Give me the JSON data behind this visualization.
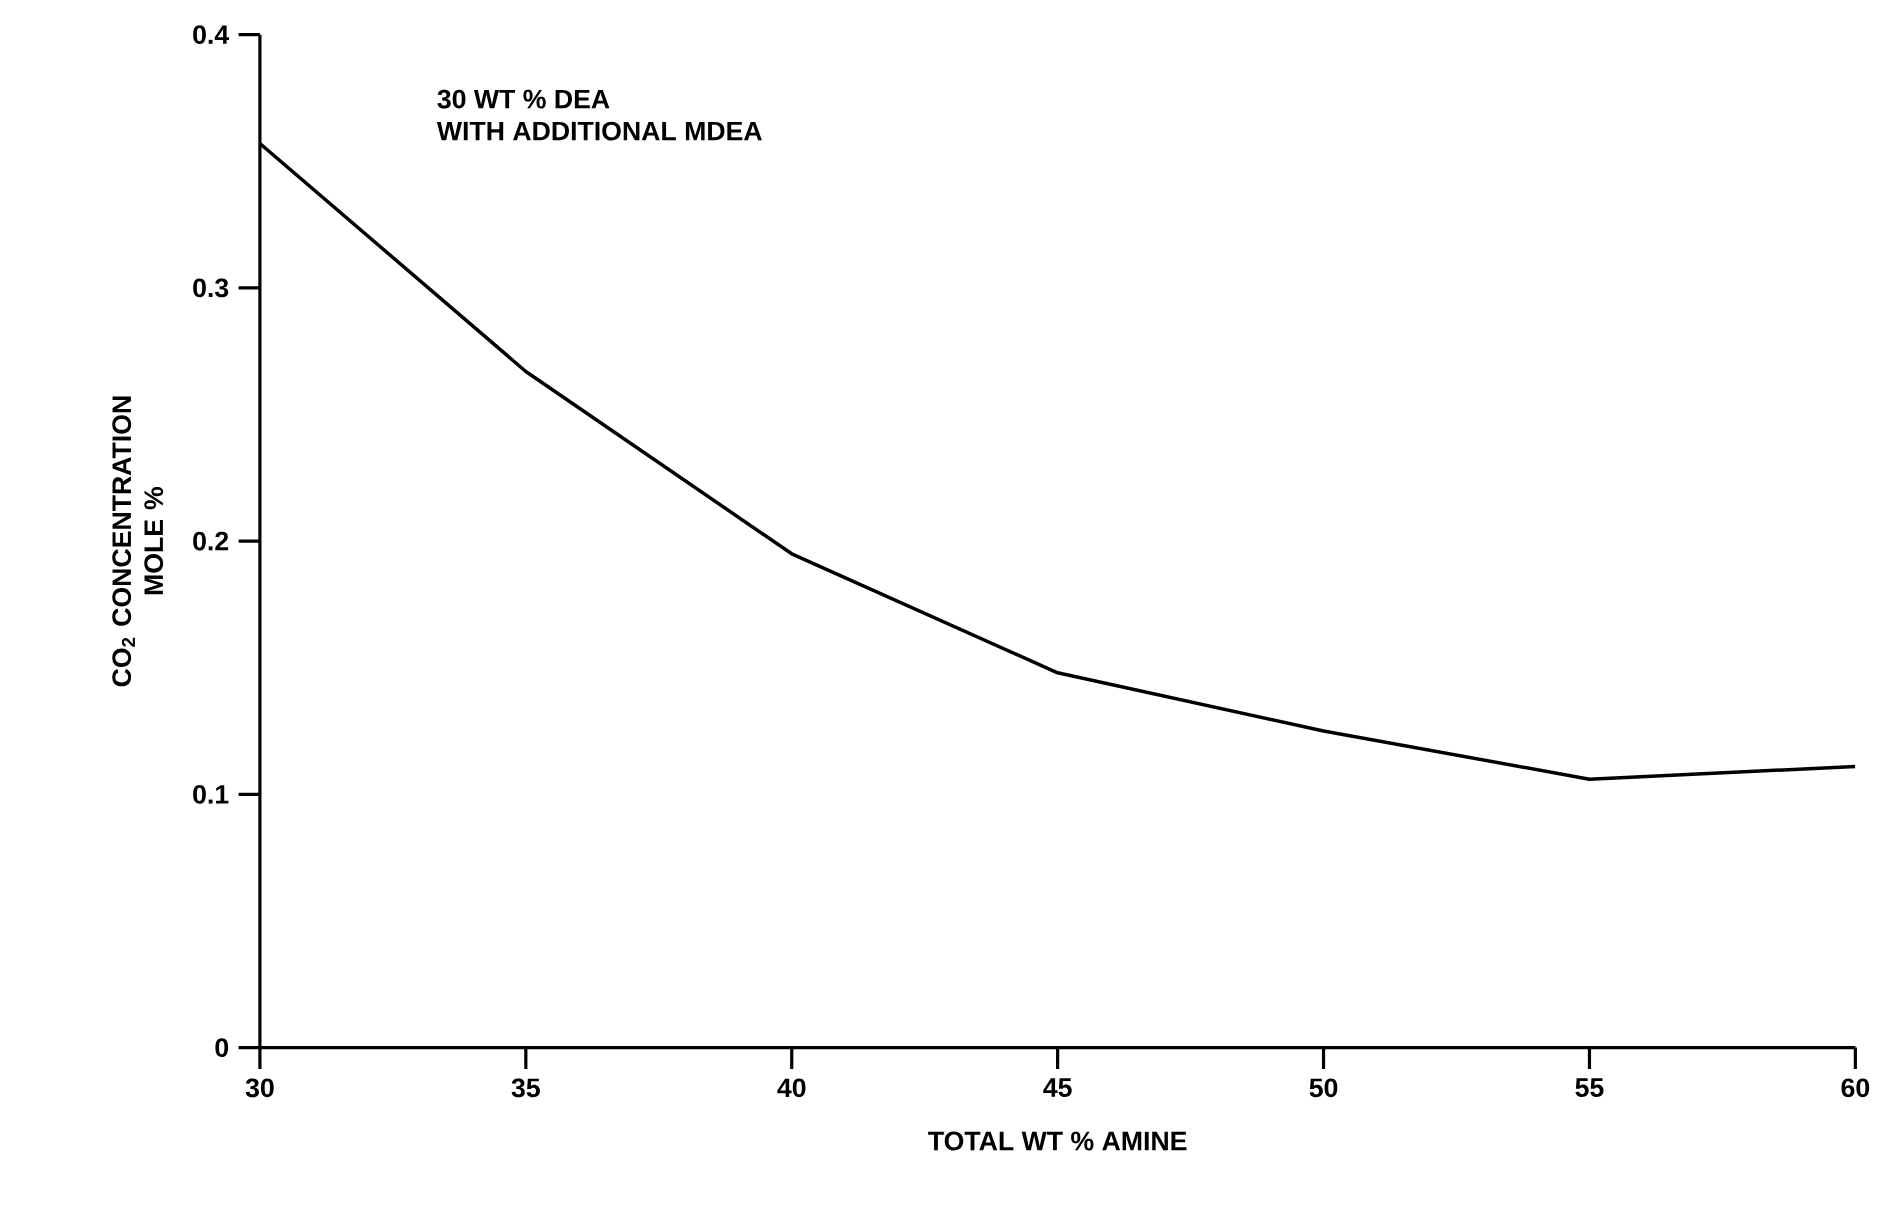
{
  "chart_data": {
    "type": "line",
    "xlabel": "TOTAL WT % AMINE",
    "ylabel": "CO$_{2}$ CONCENTRATION MOLE %",
    "annotations": [
      "30 WT % DEA",
      "WITH ADDITIONAL MDEA"
    ],
    "x": [
      30,
      35,
      40,
      45,
      50,
      55,
      60
    ],
    "series": [
      {
        "color": "#000000",
        "values": [
          0.357,
          0.267,
          0.195,
          0.148,
          0.125,
          0.106,
          0.111
        ]
      }
    ],
    "xlim": [
      30,
      60
    ],
    "ylim": [
      0,
      0.4
    ],
    "xticks": [
      30,
      35,
      40,
      45,
      50,
      55,
      60
    ],
    "yticks": [
      0,
      0.1,
      0.2,
      0.3,
      0.4
    ],
    "grid": false,
    "marker": "none",
    "line_style": "solid"
  }
}
